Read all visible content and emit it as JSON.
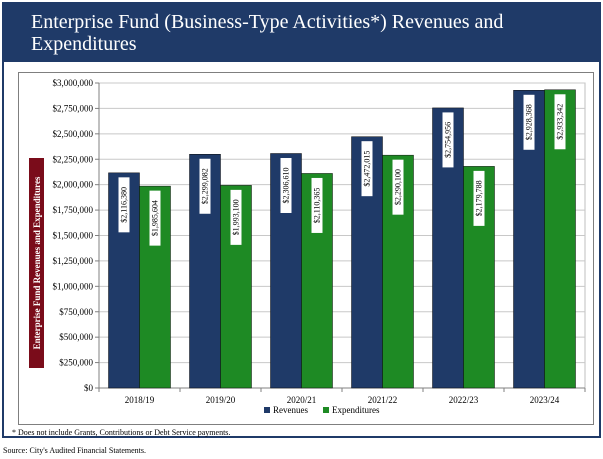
{
  "title": "Enterprise Fund (Business-Type Activities*) Revenues and Expenditures",
  "footnote": "* Does not include Grants, Contributions or Debt Service payments.",
  "source": "Source: City's Audited Financial Statements.",
  "colors": {
    "title_bar": "#1f3a68",
    "revenues": "#1f3a68",
    "expenditures": "#1e8a24",
    "ylabel_box": "#7a0c1a"
  },
  "chart_data": {
    "type": "bar",
    "title": "",
    "xlabel": "",
    "ylabel": "Enterprise Fund Revenues and Expenditures",
    "categories": [
      "2018/19",
      "2019/20",
      "2020/21",
      "2021/22",
      "2022/23",
      "2023/24"
    ],
    "series": [
      {
        "name": "Revenues",
        "values": [
          2116380,
          2299082,
          2306610,
          2472015,
          2754956,
          2928368
        ],
        "labels": [
          "$2,116,380",
          "$2,299,082",
          "$2,306,610",
          "$2,472,015",
          "$2,754,956",
          "$2,928,368"
        ]
      },
      {
        "name": "Expenditures",
        "values": [
          1985604,
          1993100,
          2110365,
          2290100,
          2179788,
          2933342
        ],
        "labels": [
          "$1,985,604",
          "$1,993,100",
          "$2,110,365",
          "$2,290,100",
          "$2,179,788",
          "$2,933,342"
        ]
      }
    ],
    "ylim": [
      0,
      3000000
    ],
    "yticks": [
      0,
      250000,
      500000,
      750000,
      1000000,
      1250000,
      1500000,
      1750000,
      2000000,
      2250000,
      2500000,
      2750000,
      3000000
    ],
    "ytick_labels": [
      "$0",
      "$250,000",
      "$500,000",
      "$750,000",
      "$1,000,000",
      "$1,250,000",
      "$1,500,000",
      "$1,750,000",
      "$2,000,000",
      "$2,250,000",
      "$2,500,000",
      "$2,750,000",
      "$3,000,000"
    ],
    "grid": true,
    "legend": "bottom-center"
  }
}
